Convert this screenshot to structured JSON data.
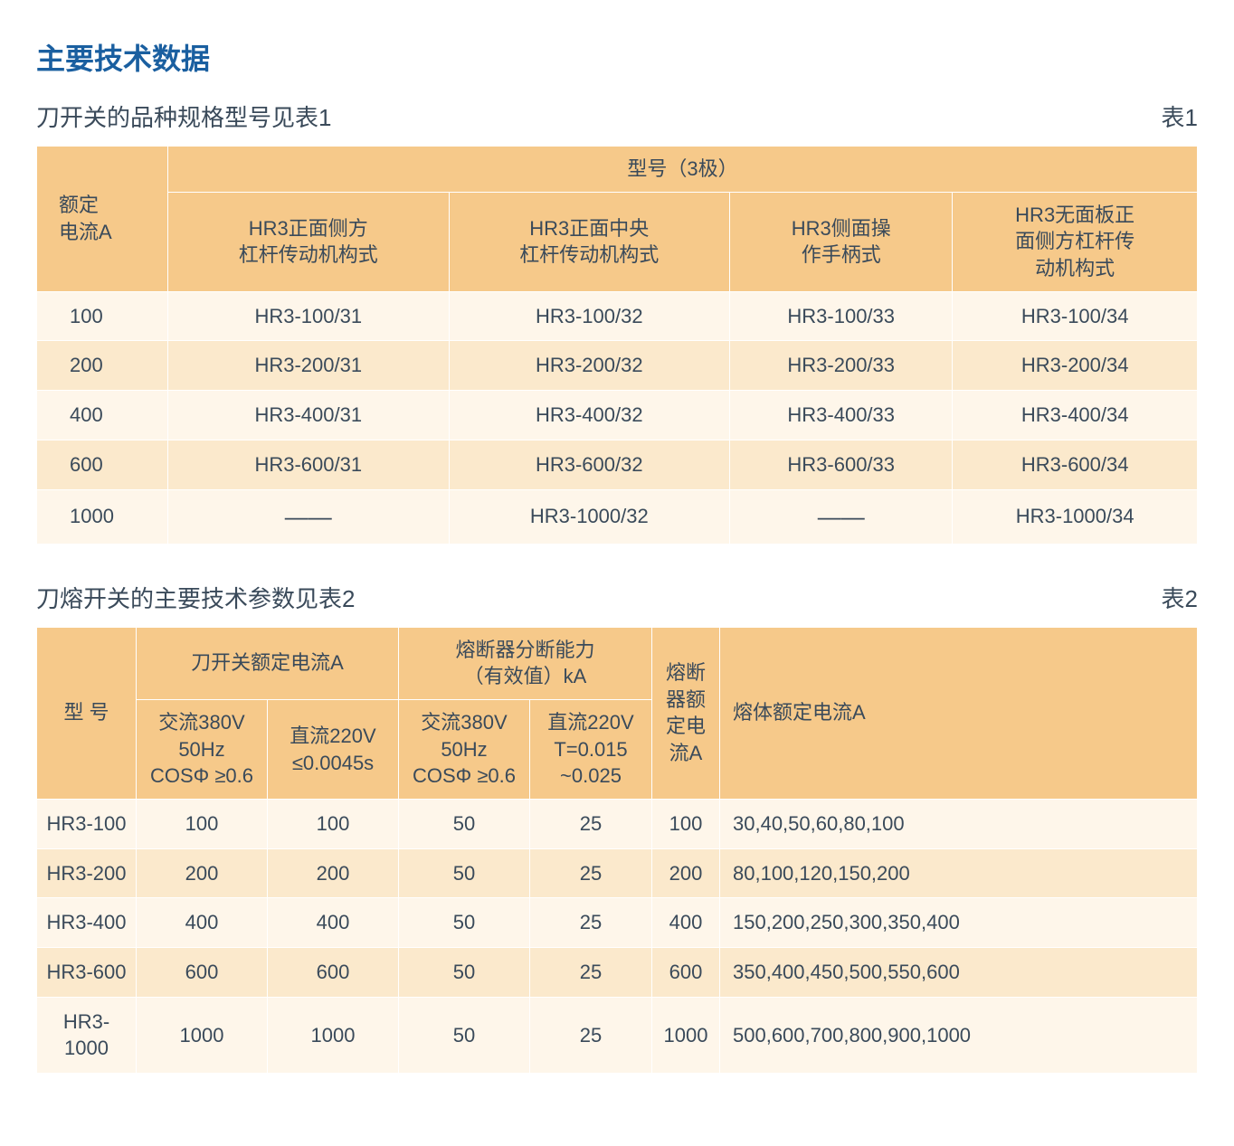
{
  "colors": {
    "title": "#1a5fa0",
    "text": "#3a4a5a",
    "header_bg": "#f6c98a",
    "row_a": "#fef6ea",
    "row_b": "#fbe9cc",
    "border": "#ffffff",
    "background": "#ffffff"
  },
  "typography": {
    "title_fontsize": 32,
    "subtitle_fontsize": 26,
    "table_label_fontsize": 26,
    "cell_fontsize": 22
  },
  "main_title": "主要技术数据",
  "table1": {
    "subtitle": "刀开关的品种规格型号见表1",
    "label": "表1",
    "row_header": "额定\n电流A",
    "group_header": "型号（3极）",
    "columns": [
      "HR3正面侧方\n杠杆传动机构式",
      "HR3正面中央\n杠杆传动机构式",
      "HR3侧面操\n作手柄式",
      "HR3无面板正\n面侧方杠杆传\n动机构式"
    ],
    "rows": [
      {
        "label": "100",
        "cells": [
          "HR3-100/31",
          "HR3-100/32",
          "HR3-100/33",
          "HR3-100/34"
        ]
      },
      {
        "label": "200",
        "cells": [
          "HR3-200/31",
          "HR3-200/32",
          "HR3-200/33",
          "HR3-200/34"
        ]
      },
      {
        "label": "400",
        "cells": [
          "HR3-400/31",
          "HR3-400/32",
          "HR3-400/33",
          "HR3-400/34"
        ]
      },
      {
        "label": "600",
        "cells": [
          "HR3-600/31",
          "HR3-600/32",
          "HR3-600/33",
          "HR3-600/34"
        ]
      },
      {
        "label": "1000",
        "cells": [
          "——",
          "HR3-1000/32",
          "——",
          "HR3-1000/34"
        ]
      }
    ]
  },
  "table2": {
    "subtitle": "刀熔开关的主要技术参数见表2",
    "label": "表2",
    "row_header": "型 号",
    "group1_header": "刀开关额定电流A",
    "group2_header": "熔断器分断能力\n（有效值）kA",
    "col_fuse_rated": "熔断\n器额\n定电\n流A",
    "col_body_rated": "熔体额定电流A",
    "sub_cols": {
      "ac": "交流380V\n50Hz\nCOSΦ ≥0.6",
      "dc": "直流220V\n≤0.0045s",
      "ac2": "交流380V\n50Hz\nCOSΦ ≥0.6",
      "dc2": "直流220V\nT=0.015\n~0.025"
    },
    "rows": [
      {
        "model": "HR3-100",
        "c": [
          "100",
          "100",
          "50",
          "25",
          "100"
        ],
        "body": "30,40,50,60,80,100"
      },
      {
        "model": "HR3-200",
        "c": [
          "200",
          "200",
          "50",
          "25",
          "200"
        ],
        "body": "80,100,120,150,200"
      },
      {
        "model": "HR3-400",
        "c": [
          "400",
          "400",
          "50",
          "25",
          "400"
        ],
        "body": "150,200,250,300,350,400"
      },
      {
        "model": "HR3-600",
        "c": [
          "600",
          "600",
          "50",
          "25",
          "600"
        ],
        "body": "350,400,450,500,550,600"
      },
      {
        "model": "HR3-1000",
        "c": [
          "1000",
          "1000",
          "50",
          "25",
          "1000"
        ],
        "body": "500,600,700,800,900,1000"
      }
    ]
  }
}
